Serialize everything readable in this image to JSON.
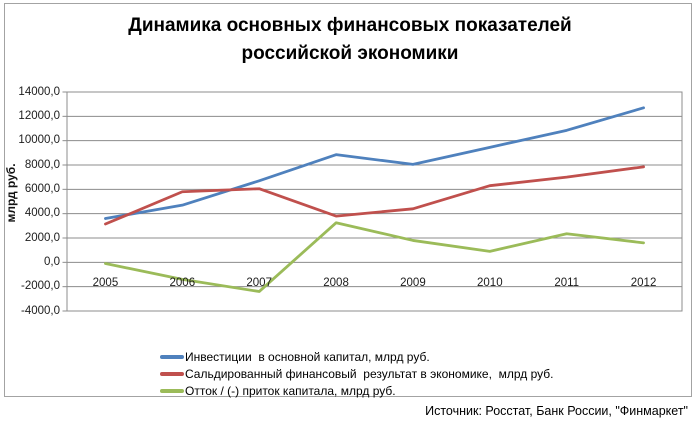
{
  "title": {
    "line1": "Динамика основных финансовых показателей",
    "line2": "российской экономики"
  },
  "source_note": "Источник: Росстат, Банк России, \"Финмаркет\"",
  "chart_data": {
    "type": "line",
    "title": "Динамика основных финансовых показателей российской экономики",
    "categories": [
      "2005",
      "2006",
      "2007",
      "2008",
      "2009",
      "2010",
      "2011",
      "2012"
    ],
    "series": [
      {
        "key": "investments",
        "name": "Инвестиции  в основной капитал, млрд руб.",
        "color": "#4F81BD",
        "values": [
          3600,
          4700,
          6700,
          8850,
          8050,
          9450,
          10850,
          12700
        ]
      },
      {
        "key": "financial-result",
        "name": "Сальдированный финансовый  результат в экономике,  млрд руб.",
        "color": "#C0504D",
        "values": [
          3150,
          5800,
          6050,
          3800,
          4400,
          6300,
          7000,
          7850
        ]
      },
      {
        "key": "capital-flow",
        "name": "Отток / (-) приток капитала, млрд руб.",
        "color": "#9BBB59",
        "values": [
          -100,
          -1400,
          -2400,
          3250,
          1800,
          900,
          2350,
          1600
        ]
      }
    ],
    "xlabel": "",
    "ylabel": "млрд руб.",
    "ylim": [
      -4000,
      14000
    ],
    "ytick_step": 2000,
    "ytick_values": [
      14000,
      12000,
      10000,
      8000,
      6000,
      4000,
      2000,
      0,
      -2000,
      -4000
    ],
    "ytick_labels": [
      "14000,0",
      "12000,0",
      "10000,0",
      "8000,0",
      "6000,0",
      "4000,0",
      "2000,0",
      "0,0",
      "-2000,0",
      "-4000,0"
    ],
    "grid": true,
    "grid_color": "#8C8C8C",
    "legend_position": "bottom"
  }
}
